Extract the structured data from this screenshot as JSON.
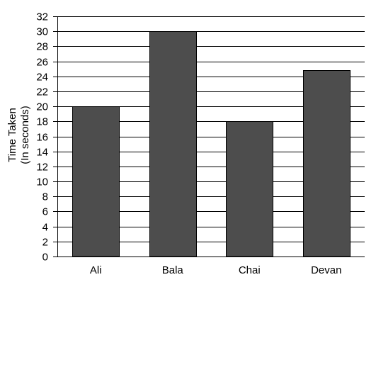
{
  "chart_data": {
    "type": "bar",
    "categories": [
      "Ali",
      "Bala",
      "Chai",
      "Devan"
    ],
    "values": [
      20,
      30,
      18,
      24.8
    ],
    "title": "",
    "xlabel": "",
    "ylabel": [
      "Time Taken",
      "(In seconds)"
    ],
    "ylim": [
      0,
      32
    ],
    "yticks": [
      0,
      2,
      4,
      6,
      8,
      10,
      12,
      14,
      16,
      18,
      20,
      22,
      24,
      26,
      28,
      30,
      32
    ],
    "grid": true,
    "bar_color": "#4d4d4d",
    "grid_color": "#000000"
  }
}
